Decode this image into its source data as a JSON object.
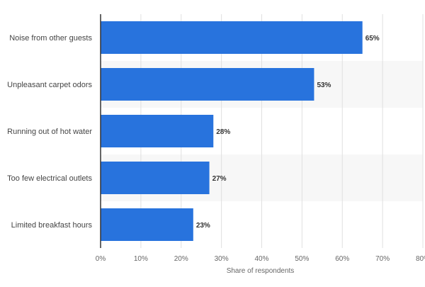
{
  "chart_data": {
    "type": "bar",
    "orientation": "horizontal",
    "categories": [
      "Noise from other guests",
      "Unpleasant carpet odors",
      "Running out of hot water",
      "Too few electrical outlets",
      "Limited breakfast hours"
    ],
    "values": [
      65,
      53,
      28,
      27,
      23
    ],
    "value_labels": [
      "65%",
      "53%",
      "28%",
      "27%",
      "23%"
    ],
    "xlabel": "Share of respondents",
    "ylabel": "",
    "xlim": [
      0,
      80
    ],
    "x_ticks": [
      0,
      10,
      20,
      30,
      40,
      50,
      60,
      70,
      80
    ],
    "x_tick_labels": [
      "0%",
      "10%",
      "20%",
      "30%",
      "40%",
      "50%",
      "60%",
      "70%",
      "80%"
    ],
    "grid": "vertical",
    "alternating_row_shading": true,
    "colors": {
      "bar": "#2873dd",
      "row_shade": "#f7f7f7",
      "grid": "#e0e0e0",
      "axis": "#333333",
      "label_text": "#444444",
      "value_text": "#333333",
      "tick_text": "#666666"
    }
  }
}
